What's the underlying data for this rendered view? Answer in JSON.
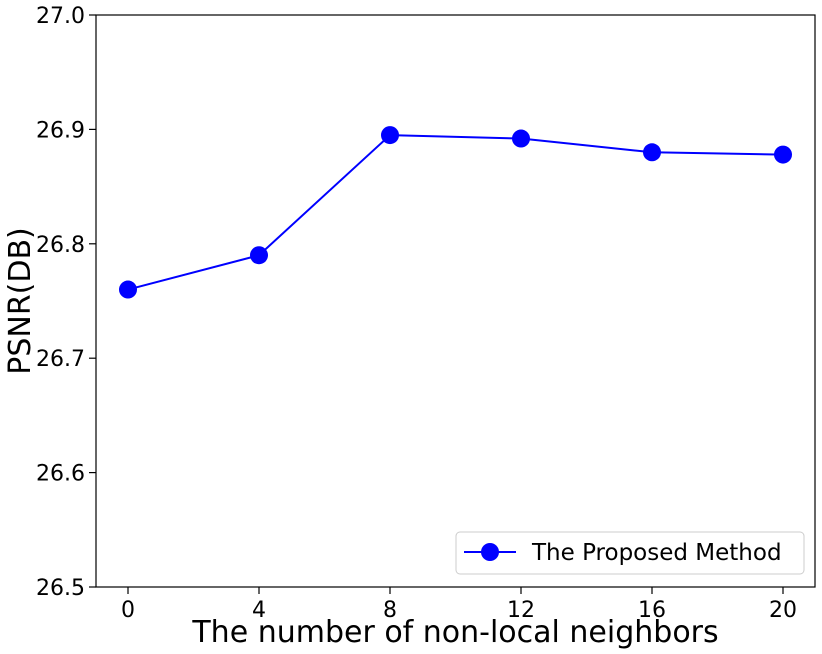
{
  "chart_data": {
    "type": "line",
    "title": "",
    "xlabel": "The number of non-local neighbors",
    "ylabel": "PSNR(DB)",
    "x": [
      0,
      4,
      8,
      12,
      16,
      20
    ],
    "x_ticks": [
      "0",
      "4",
      "8",
      "12",
      "16",
      "20"
    ],
    "ylim": [
      26.5,
      27.0
    ],
    "y_ticks": [
      "26.5",
      "26.6",
      "26.7",
      "26.8",
      "26.9",
      "27.0"
    ],
    "y_tick_values": [
      26.5,
      26.6,
      26.7,
      26.8,
      26.9,
      27.0
    ],
    "grid": false,
    "legend_position": "bottom-right",
    "series": [
      {
        "name": "The Proposed Method",
        "color": "#0000ff",
        "marker": "circle",
        "values": [
          26.76,
          26.79,
          26.895,
          26.892,
          26.88,
          26.878
        ]
      }
    ]
  }
}
